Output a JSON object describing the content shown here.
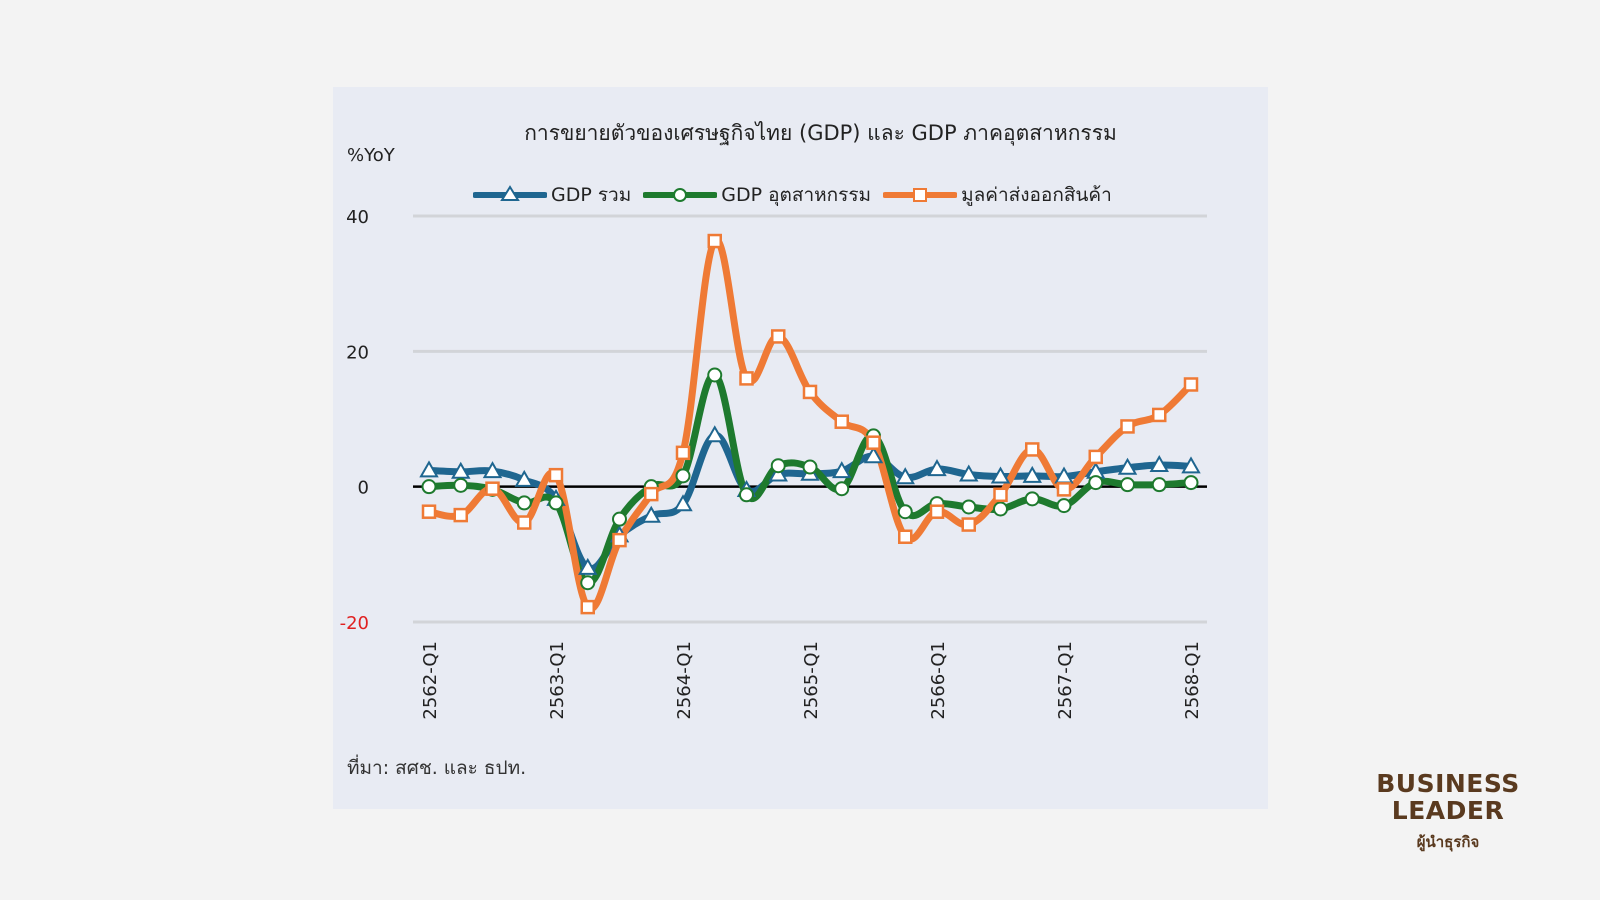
{
  "chart_data": {
    "type": "line",
    "title": "การขยายตัวของเศรษฐกิจไทย (GDP) และ GDP ภาคอุตสาหกรรม",
    "ylabel": "%YoY",
    "xlabel": "",
    "ylim": [
      -20,
      40
    ],
    "yticks": [
      {
        "value": 40,
        "label": "40",
        "color": "#222222"
      },
      {
        "value": 20,
        "label": "20",
        "color": "#222222"
      },
      {
        "value": 0,
        "label": "0",
        "color": "#222222"
      },
      {
        "value": -20,
        "label": "-20",
        "color": "#e02020"
      }
    ],
    "grid": true,
    "legend_position": "top",
    "x": [
      "2562-Q1",
      "2562-Q2",
      "2562-Q3",
      "2562-Q4",
      "2563-Q1",
      "2563-Q2",
      "2563-Q3",
      "2563-Q4",
      "2564-Q1",
      "2564-Q2",
      "2564-Q3",
      "2564-Q4",
      "2565-Q1",
      "2565-Q2",
      "2565-Q3",
      "2565-Q4",
      "2566-Q1",
      "2566-Q2",
      "2566-Q3",
      "2566-Q4",
      "2567-Q1",
      "2567-Q2",
      "2567-Q3",
      "2567-Q4",
      "2568-Q1"
    ],
    "xtick_labels_shown": [
      "2562-Q1",
      "2563-Q1",
      "2564-Q1",
      "2565-Q1",
      "2566-Q1",
      "2567-Q1",
      "2568-Q1"
    ],
    "series": [
      {
        "name": "GDP รวม",
        "color": "#1f6690",
        "marker": "triangle",
        "values": [
          2.4,
          2.2,
          2.3,
          1.0,
          -1.8,
          -12.0,
          -7.2,
          -4.3,
          -2.6,
          7.6,
          -0.5,
          1.8,
          1.9,
          2.3,
          4.5,
          1.4,
          2.6,
          1.8,
          1.5,
          1.6,
          1.5,
          2.2,
          2.8,
          3.2,
          3.0
        ]
      },
      {
        "name": "GDP อุตสาหกรรม",
        "color": "#1e7a2e",
        "marker": "circle",
        "values": [
          0.0,
          0.2,
          -0.4,
          -2.4,
          -2.4,
          -14.2,
          -4.8,
          0.0,
          1.6,
          16.5,
          -1.2,
          3.1,
          2.9,
          -0.3,
          7.5,
          -3.7,
          -2.5,
          -3.0,
          -3.3,
          -1.8,
          -2.8,
          0.6,
          0.3,
          0.3,
          0.6
        ]
      },
      {
        "name": "มูลค่าส่งออกสินค้า",
        "color": "#ef7a35",
        "marker": "square",
        "values": [
          -3.7,
          -4.2,
          -0.3,
          -5.3,
          1.7,
          -17.8,
          -7.9,
          -1.1,
          5.0,
          36.3,
          16.0,
          22.2,
          14.0,
          9.6,
          6.5,
          -7.4,
          -3.7,
          -5.6,
          -1.2,
          5.5,
          -0.4,
          4.4,
          8.9,
          10.6,
          15.1
        ]
      }
    ],
    "source": "ที่มา: สศช. และ ธปท."
  },
  "logo": {
    "line1": "BUSINESS",
    "line2": "LEADER",
    "subtitle": "ผู้นำธุรกิจ",
    "color": "#5a3a1f"
  }
}
